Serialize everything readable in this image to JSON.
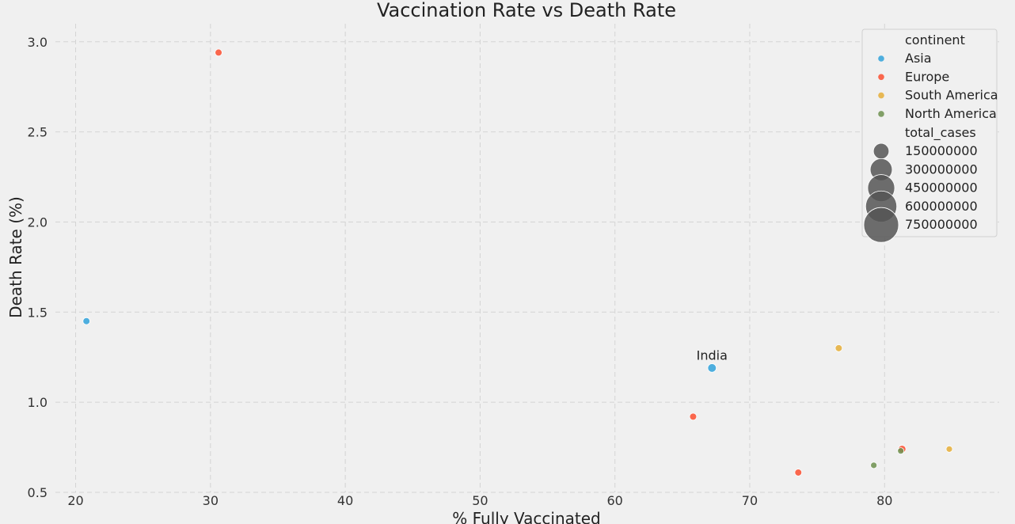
{
  "chart_data": {
    "type": "scatter",
    "title": "Vaccination Rate vs Death Rate",
    "xlabel": "% Fully Vaccinated",
    "ylabel": "Death Rate (%)",
    "xlim": [
      18.5,
      88.5
    ],
    "ylim": [
      0.5,
      3.1
    ],
    "x_ticks": [
      20,
      30,
      40,
      50,
      60,
      70,
      80
    ],
    "y_ticks": [
      0.5,
      1.0,
      1.5,
      2.0,
      2.5,
      3.0
    ],
    "y_tick_labels": [
      "0.5",
      "1.0",
      "1.5",
      "2.0",
      "2.5",
      "3.0"
    ],
    "grid": true,
    "legend_position": "top-right",
    "hue_title": "continent",
    "size_title": "total_cases",
    "series": [
      {
        "name": "Asia",
        "color": "#30a2da",
        "points": [
          {
            "x": 20.8,
            "y": 1.45,
            "size": 30000000
          },
          {
            "x": 67.2,
            "y": 1.19,
            "size": 45000000,
            "label": "India"
          }
        ]
      },
      {
        "name": "Europe",
        "color": "#fc4f30",
        "points": [
          {
            "x": 30.6,
            "y": 2.94,
            "size": 30000000
          },
          {
            "x": 65.8,
            "y": 0.92,
            "size": 30000000
          },
          {
            "x": 73.6,
            "y": 0.61,
            "size": 30000000
          },
          {
            "x": 81.3,
            "y": 0.74,
            "size": 35000000
          }
        ]
      },
      {
        "name": "South America",
        "color": "#e5ae38",
        "points": [
          {
            "x": 76.6,
            "y": 1.3,
            "size": 30000000
          },
          {
            "x": 84.8,
            "y": 0.74,
            "size": 25000000
          }
        ]
      },
      {
        "name": "North America",
        "color": "#6d904f",
        "points": [
          {
            "x": 79.2,
            "y": 0.65,
            "size": 25000000
          },
          {
            "x": 81.2,
            "y": 0.73,
            "size": 25000000
          }
        ]
      }
    ],
    "size_legend": {
      "color": "#555555",
      "entries": [
        {
          "label": "150000000",
          "value": 150000000
        },
        {
          "label": "300000000",
          "value": 300000000
        },
        {
          "label": "450000000",
          "value": 450000000
        },
        {
          "label": "600000000",
          "value": 600000000
        },
        {
          "label": "750000000",
          "value": 750000000
        }
      ]
    }
  }
}
